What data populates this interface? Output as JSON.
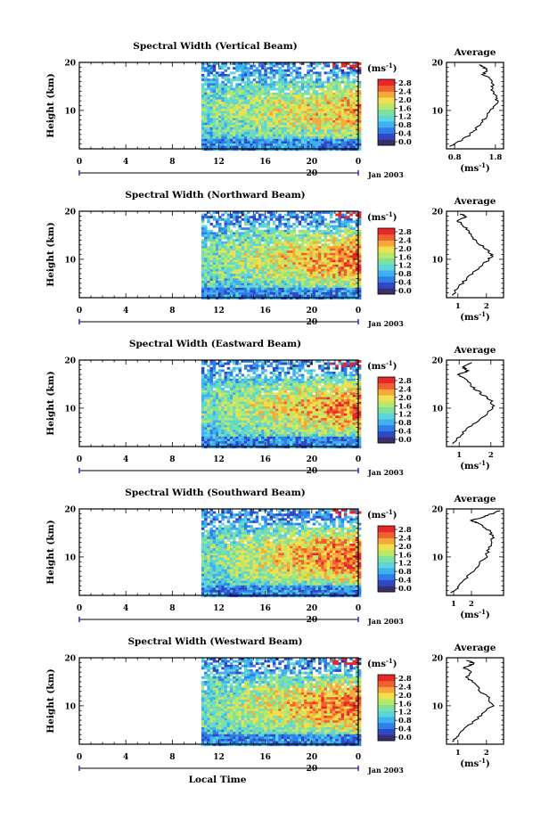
{
  "figure": {
    "xlabel": "Local Time",
    "date_label": "Jan 2003",
    "day_label": "20",
    "colorbar_unit_text": "(ms",
    "colorbar_unit_exp": "-1",
    "colorbar_unit_close": ")",
    "avg_title": "Average",
    "colorbar_ticks": [
      "0.0",
      "0.4",
      "0.8",
      "1.2",
      "1.6",
      "2.0",
      "2.4",
      "2.8"
    ],
    "colors": [
      "#3a2f68",
      "#3048c8",
      "#2f7fe8",
      "#3fb0f0",
      "#5cd6d8",
      "#80e0a0",
      "#b8e86a",
      "#f0e050",
      "#f8a838",
      "#f06030",
      "#e82828"
    ]
  },
  "chart_data": [
    {
      "type": "heatmap",
      "title": "Spectral Width (Vertical Beam)",
      "ylabel": "Height (km)",
      "xlim": [
        0,
        24
      ],
      "ylim": [
        2,
        20
      ],
      "xticks": [
        "0",
        "4",
        "8",
        "12",
        "16",
        "20",
        "0"
      ],
      "yticks": [
        "10",
        "20"
      ],
      "data_start_hour": 10.5,
      "colorbar_range": [
        0.0,
        3.0
      ],
      "average": {
        "title": "Average",
        "xlabel": "(ms-1)",
        "xticks": [
          "0.8",
          "1.8"
        ],
        "xlim": [
          0.6,
          2.0
        ],
        "profile": [
          [
            0.7,
            2.5
          ],
          [
            0.9,
            3.5
          ],
          [
            1.1,
            4.5
          ],
          [
            1.3,
            6
          ],
          [
            1.5,
            8
          ],
          [
            1.7,
            10
          ],
          [
            1.85,
            11.5
          ],
          [
            1.8,
            13
          ],
          [
            1.7,
            14.5
          ],
          [
            1.75,
            16
          ],
          [
            1.5,
            17.5
          ],
          [
            1.6,
            18.5
          ],
          [
            1.4,
            19.5
          ]
        ]
      }
    },
    {
      "type": "heatmap",
      "title": "Spectral Width (Northward Beam)",
      "ylabel": "Height (km)",
      "xlim": [
        0,
        24
      ],
      "ylim": [
        2,
        20
      ],
      "xticks": [
        "0",
        "4",
        "8",
        "12",
        "16",
        "20",
        "0"
      ],
      "yticks": [
        "10",
        "20"
      ],
      "data_start_hour": 10.5,
      "colorbar_range": [
        0.0,
        3.0
      ],
      "average": {
        "title": "Average",
        "xlabel": "(ms-1)",
        "xticks": [
          "1",
          "2"
        ],
        "xlim": [
          0.6,
          2.6
        ],
        "profile": [
          [
            0.8,
            2.5
          ],
          [
            1.0,
            4
          ],
          [
            1.3,
            6
          ],
          [
            1.7,
            8
          ],
          [
            2.1,
            10
          ],
          [
            2.2,
            11
          ],
          [
            1.9,
            12.5
          ],
          [
            1.6,
            14
          ],
          [
            1.4,
            15.5
          ],
          [
            1.2,
            17
          ],
          [
            1.0,
            18
          ],
          [
            1.3,
            18.8
          ],
          [
            1.1,
            19.5
          ]
        ]
      }
    },
    {
      "type": "heatmap",
      "title": "Spectral Width (Eastward Beam)",
      "ylabel": "Height (km)",
      "xlim": [
        0,
        24
      ],
      "ylim": [
        2,
        20
      ],
      "xticks": [
        "0",
        "4",
        "8",
        "12",
        "16",
        "20",
        "0"
      ],
      "yticks": [
        "10",
        "20"
      ],
      "data_start_hour": 10.5,
      "colorbar_range": [
        0.0,
        3.0
      ],
      "average": {
        "title": "Average",
        "xlabel": "(ms-1)",
        "xticks": [
          "1",
          "2"
        ],
        "xlim": [
          0.6,
          2.4
        ],
        "profile": [
          [
            0.8,
            2.5
          ],
          [
            1.0,
            4
          ],
          [
            1.3,
            6
          ],
          [
            1.7,
            8
          ],
          [
            2.1,
            10
          ],
          [
            2.0,
            11.5
          ],
          [
            1.7,
            13
          ],
          [
            1.4,
            14.5
          ],
          [
            1.2,
            16
          ],
          [
            1.0,
            17
          ],
          [
            1.3,
            17.8
          ],
          [
            1.1,
            18.6
          ],
          [
            1.4,
            19.5
          ]
        ]
      }
    },
    {
      "type": "heatmap",
      "title": "Spectral Width (Southward Beam)",
      "ylabel": "Height (km)",
      "xlim": [
        0,
        24
      ],
      "ylim": [
        2,
        20
      ],
      "xticks": [
        "0",
        "4",
        "8",
        "12",
        "16",
        "20",
        "0"
      ],
      "yticks": [
        "10",
        "20"
      ],
      "data_start_hour": 10.5,
      "colorbar_range": [
        0.0,
        3.0
      ],
      "average": {
        "title": "Average",
        "xlabel": "(ms-1)",
        "xticks": [
          "1",
          "2"
        ],
        "xlim": [
          0.6,
          3.8
        ],
        "profile": [
          [
            0.9,
            2.5
          ],
          [
            1.3,
            4
          ],
          [
            1.8,
            6
          ],
          [
            2.3,
            8
          ],
          [
            2.8,
            10
          ],
          [
            3.0,
            12
          ],
          [
            3.2,
            14
          ],
          [
            3.0,
            15.5
          ],
          [
            2.4,
            17
          ],
          [
            2.0,
            17.6
          ],
          [
            2.6,
            18.3
          ],
          [
            3.1,
            19
          ],
          [
            3.6,
            19.6
          ]
        ]
      }
    },
    {
      "type": "heatmap",
      "title": "Spectral Width (Westward Beam)",
      "ylabel": "Height (km)",
      "xlim": [
        0,
        24
      ],
      "ylim": [
        2,
        20
      ],
      "xticks": [
        "0",
        "4",
        "8",
        "12",
        "16",
        "20",
        "0"
      ],
      "yticks": [
        "10",
        "20"
      ],
      "data_start_hour": 10.5,
      "colorbar_range": [
        0.0,
        3.0
      ],
      "average": {
        "title": "Average",
        "xlabel": "(ms-1)",
        "xticks": [
          "1",
          "2"
        ],
        "xlim": [
          0.6,
          2.6
        ],
        "profile": [
          [
            0.8,
            2.5
          ],
          [
            1.0,
            4
          ],
          [
            1.4,
            6
          ],
          [
            1.8,
            8
          ],
          [
            2.2,
            10
          ],
          [
            2.1,
            11.5
          ],
          [
            1.8,
            13
          ],
          [
            1.6,
            14.5
          ],
          [
            1.3,
            16
          ],
          [
            1.5,
            17
          ],
          [
            1.2,
            18
          ],
          [
            1.6,
            18.8
          ],
          [
            1.3,
            19.5
          ]
        ]
      }
    }
  ]
}
